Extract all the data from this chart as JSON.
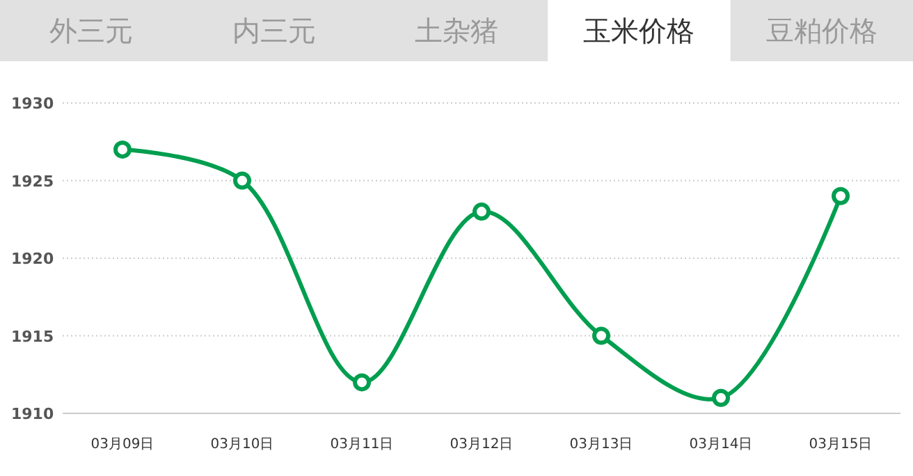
{
  "chart_data": {
    "type": "line",
    "annotations": [
      "外三元",
      "内三元",
      "土杂猪",
      "玉米价格",
      "豆粕价格"
    ],
    "categories": [
      "03月09日",
      "03月10日",
      "03月11日",
      "03月12日",
      "03月13日",
      "03月14日",
      "03月15日"
    ],
    "series": [
      {
        "color": "#009e4f",
        "values": [
          1927,
          1925,
          1912,
          1923,
          1915,
          1911,
          1924
        ]
      }
    ],
    "ylim": [
      1910,
      1930
    ],
    "yticks": [
      1910,
      1915,
      1920,
      1925,
      1930
    ],
    "grid": "y",
    "marker": "circle",
    "line_style": "solid"
  }
}
